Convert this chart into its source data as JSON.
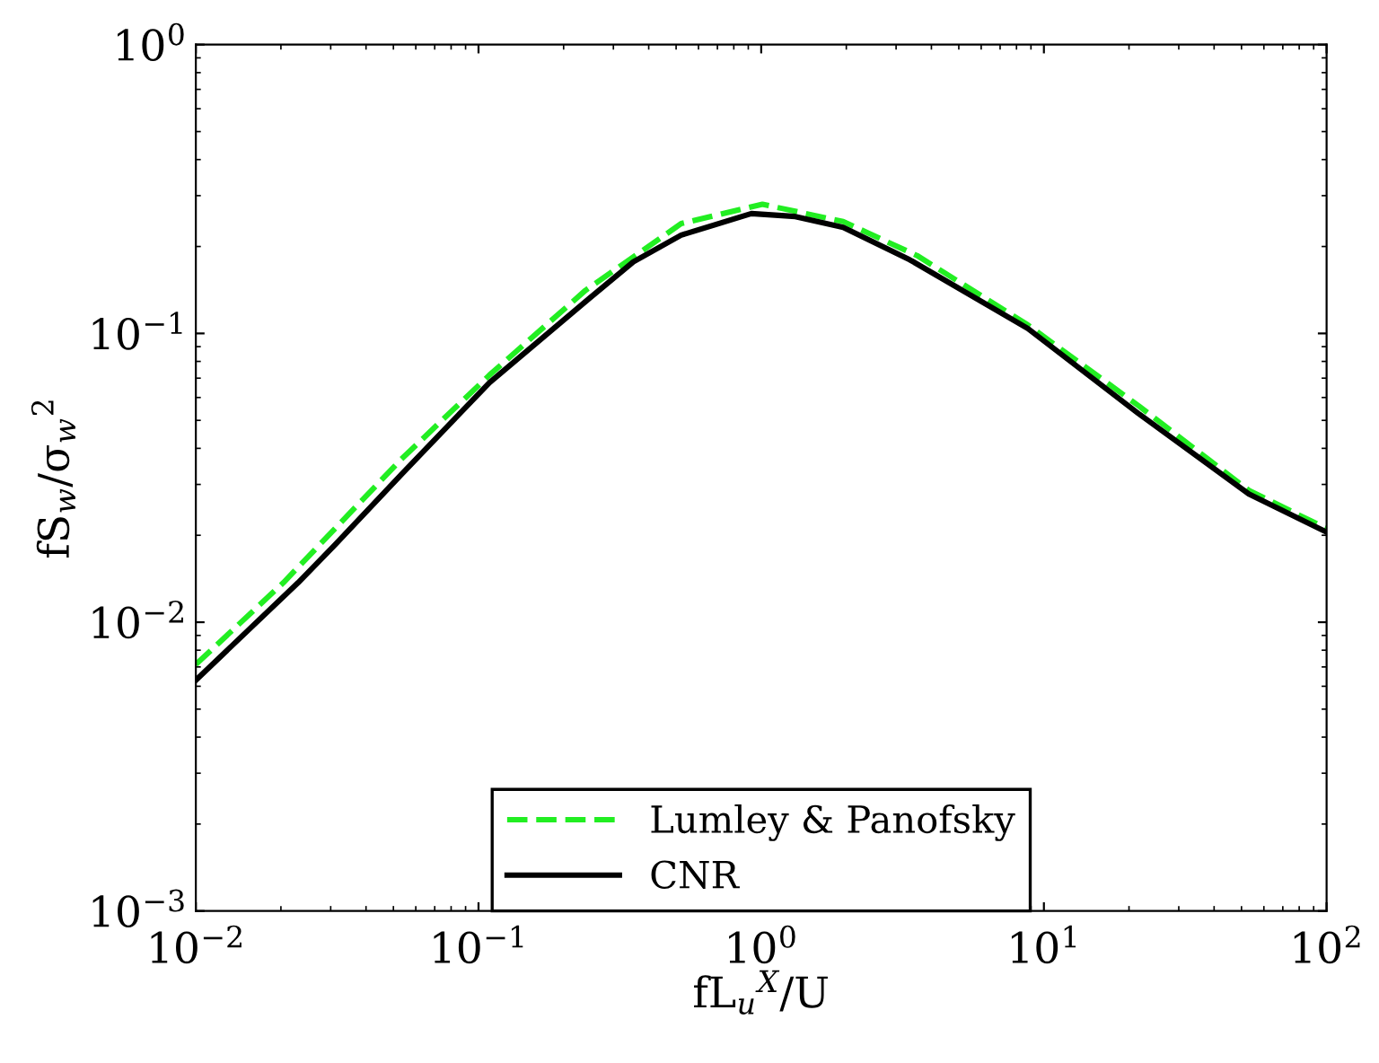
{
  "chart_data": {
    "type": "line",
    "xlabel": "fL$_{u}$$^{X}$/U",
    "ylabel": "fS$_{w}$/σ$_{w}$$^{2}$",
    "log": "xy",
    "xlim": [
      0.01,
      100
    ],
    "ylim": [
      0.001,
      1
    ],
    "xticks": [
      {
        "value": 0.01,
        "label": "10$^{−2}$"
      },
      {
        "value": 0.1,
        "label": "10$^{−1}$"
      },
      {
        "value": 1,
        "label": "10$^{0}$"
      },
      {
        "value": 10,
        "label": "10$^{1}$"
      },
      {
        "value": 100,
        "label": "10$^{2}$"
      }
    ],
    "yticks": [
      {
        "value": 0.001,
        "label": "10$^{−3}$"
      },
      {
        "value": 0.01,
        "label": "10$^{−2}$"
      },
      {
        "value": 0.1,
        "label": "10$^{−1}$"
      },
      {
        "value": 1,
        "label": "10$^{0}$"
      }
    ],
    "grid": false,
    "legend": "bottom",
    "series": [
      {
        "name": "Lumley & Panofsky",
        "color": "#22ee22",
        "line_style": "dashed",
        "x": [
          0.01,
          0.0204,
          0.0532,
          0.1094,
          0.239,
          0.521,
          1.01,
          1.95,
          3.56,
          8.77,
          21.6,
          53.1,
          100
        ],
        "values": [
          0.00714,
          0.0137,
          0.0366,
          0.0718,
          0.141,
          0.24,
          0.28,
          0.244,
          0.186,
          0.107,
          0.0562,
          0.0286,
          0.0211
        ]
      },
      {
        "name": "CNR",
        "color": "#000000",
        "line_style": "solid",
        "x": [
          0.01,
          0.023,
          0.031,
          0.0532,
          0.1094,
          0.246,
          0.353,
          0.521,
          0.923,
          1.32,
          1.95,
          3.35,
          8.77,
          21.6,
          53.1,
          100
        ],
        "values": [
          0.0063,
          0.0137,
          0.0185,
          0.0324,
          0.0676,
          0.132,
          0.177,
          0.219,
          0.26,
          0.254,
          0.233,
          0.18,
          0.104,
          0.0528,
          0.0278,
          0.0205
        ]
      }
    ]
  }
}
